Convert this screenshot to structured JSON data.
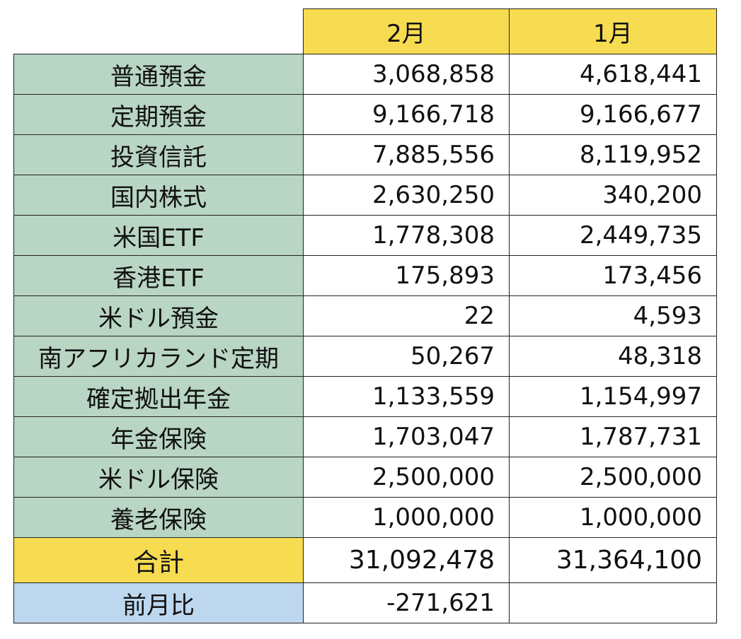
{
  "table": {
    "header": [
      "2月",
      "1月"
    ],
    "rows": [
      [
        "普通預金",
        "3,068,858",
        "4,618,441"
      ],
      [
        "定期預金",
        "9,166,718",
        "9,166,677"
      ],
      [
        "投資信託",
        "7,885,556",
        "8,119,952"
      ],
      [
        "国内株式",
        "2,630,250",
        "340,200"
      ],
      [
        "米国ETF",
        "1,778,308",
        "2,449,735"
      ],
      [
        "香港ETF",
        "175,893",
        "173,456"
      ],
      [
        "米ドル預金",
        "22",
        "4,593"
      ],
      [
        "南アフリカランド定期",
        "50,267",
        "48,318"
      ],
      [
        "確定拠出年金",
        "1,133,559",
        "1,154,997"
      ],
      [
        "年金保険",
        "1,703,047",
        "1,787,731"
      ],
      [
        "米ドル保険",
        "2,500,000",
        "2,500,000"
      ],
      [
        "養老保険",
        "1,000,000",
        "1,000,000"
      ],
      [
        "合計",
        "31,092,478",
        "31,364,100"
      ],
      [
        "前月比",
        "-271,621"
      ]
    ]
  }
}
